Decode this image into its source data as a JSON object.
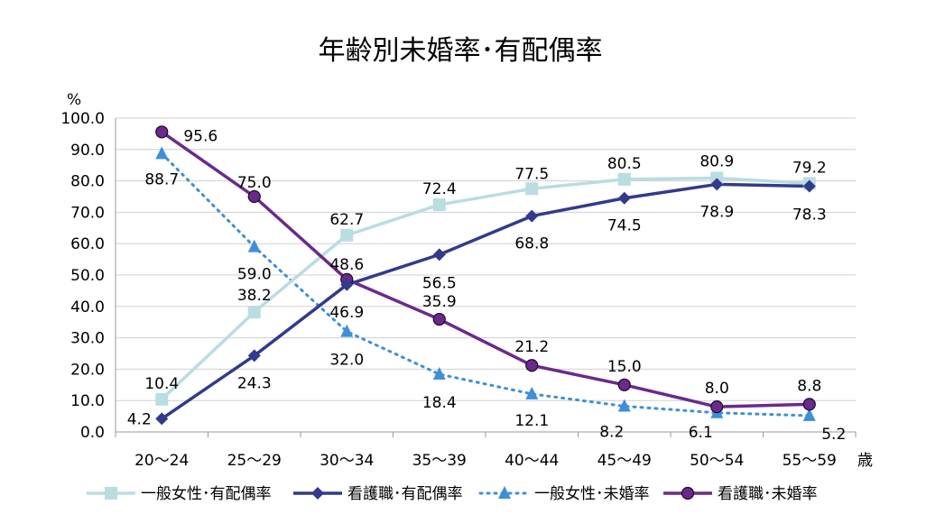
{
  "chart_data": {
    "type": "line",
    "title": "年齢別未婚率･有配偶率",
    "ylabel": "%",
    "xlabel": "歳",
    "categories": [
      "20〜24",
      "25〜29",
      "30〜34",
      "35〜39",
      "40〜44",
      "45〜49",
      "50〜54",
      "55〜59"
    ],
    "ylim": [
      0,
      100
    ],
    "ytick_labels": [
      "0.0",
      "10.0",
      "20.0",
      "30.0",
      "40.0",
      "50.0",
      "60.0",
      "70.0",
      "80.0",
      "90.0",
      "100.0"
    ],
    "grid": true,
    "legend_position": "bottom",
    "series": [
      {
        "name": "一般女性･有配偶率",
        "values": [
          10.4,
          38.2,
          62.7,
          72.4,
          77.5,
          80.5,
          80.9,
          79.2
        ],
        "color": "#b9dde1",
        "marker": "square",
        "dash": "solid"
      },
      {
        "name": "看護職･有配偶率",
        "values": [
          4.2,
          24.3,
          46.9,
          56.5,
          68.8,
          74.5,
          78.9,
          78.3
        ],
        "color": "#323a8c",
        "marker": "diamond",
        "dash": "solid"
      },
      {
        "name": "一般女性･未婚率",
        "values": [
          88.7,
          59.0,
          32.0,
          18.4,
          12.1,
          8.2,
          6.1,
          5.2
        ],
        "color": "#3d8fd9",
        "marker": "triangle",
        "dash": "dotted"
      },
      {
        "name": "看護職･未婚率",
        "values": [
          95.6,
          75.0,
          48.6,
          35.9,
          21.2,
          15.0,
          8.0,
          8.8
        ],
        "color": "#6a2a8a",
        "marker": "circle",
        "dash": "solid"
      }
    ]
  }
}
